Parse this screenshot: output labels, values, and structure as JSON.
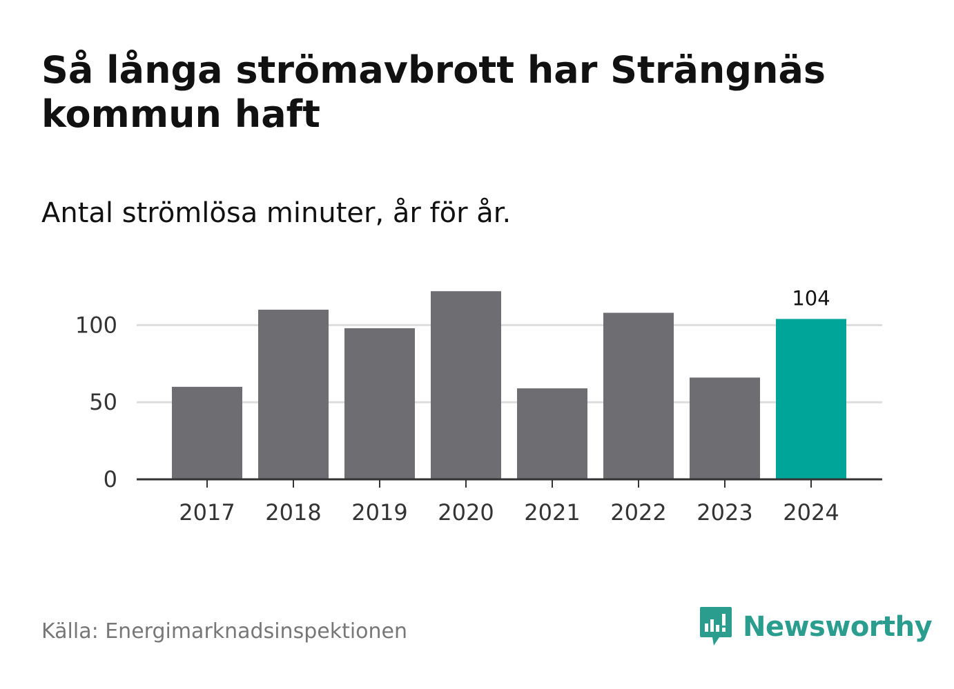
{
  "title": "Så långa strömavbrott har Strängnäs kommun haft",
  "subtitle": "Antal strömlösa minuter, år för år.",
  "source": "Källa: Energimarknadsinspektionen",
  "brand": "Newsworthy",
  "colors": {
    "bar": "#6e6d72",
    "highlight": "#00a59a",
    "grid": "#dddddd",
    "axis": "#333333",
    "brand": "#2a9d8f"
  },
  "chart_data": {
    "type": "bar",
    "categories": [
      "2017",
      "2018",
      "2019",
      "2020",
      "2021",
      "2022",
      "2023",
      "2024"
    ],
    "values": [
      60,
      110,
      98,
      122,
      59,
      108,
      66,
      104
    ],
    "highlight_index": 7,
    "highlight_label": "104",
    "yticks": [
      0,
      50,
      100
    ],
    "ytick_labels": [
      "0",
      "50",
      "100"
    ],
    "ylim": [
      0,
      125
    ],
    "title": "Så långa strömavbrott har Strängnäs kommun haft",
    "xlabel": "",
    "ylabel": ""
  }
}
